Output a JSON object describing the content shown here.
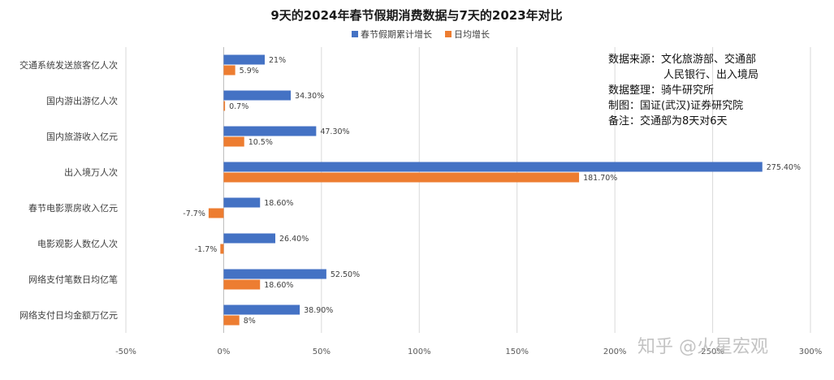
{
  "chart_data": {
    "type": "bar",
    "orientation": "horizontal",
    "title": "9天的2024年春节假期消费数据与7天的2023年对比",
    "categories": [
      "交通系统发送旅客亿人次",
      "国内游出游亿人次",
      "国内旅游收入亿元",
      "出入境万人次",
      "春节电影票房收入亿元",
      "电影观影人数亿人次",
      "网络支付笔数日均亿笔",
      "网络支付日均金额万亿元"
    ],
    "series": [
      {
        "name": "春节假期累计增长",
        "color": "#4472C4",
        "values": [
          21,
          34.3,
          47.3,
          275.4,
          18.6,
          26.4,
          52.5,
          38.9
        ],
        "labels": [
          "21%",
          "34.30%",
          "47.30%",
          "275.40%",
          "18.60%",
          "26.40%",
          "52.50%",
          "38.90%"
        ]
      },
      {
        "name": "日均增长",
        "color": "#ED7D31",
        "values": [
          5.9,
          0.7,
          10.5,
          181.7,
          -7.7,
          -1.7,
          18.6,
          8
        ],
        "labels": [
          "5.9%",
          "0.7%",
          "10.5%",
          "181.70%",
          "-7.7%",
          "-1.7%",
          "18.60%",
          "8%"
        ]
      }
    ],
    "xlim": [
      -50,
      300
    ],
    "xticks": [
      -50,
      0,
      50,
      100,
      150,
      200,
      250,
      300
    ],
    "xtick_labels": [
      "-50%",
      "0%",
      "50%",
      "100%",
      "150%",
      "200%",
      "250%",
      "300%"
    ],
    "grid": "vertical",
    "legend": "top-center"
  },
  "notes": {
    "lines": [
      "数据来源：文化旅游部、交通部",
      "人民银行、出入境局",
      "数据整理：骑牛研究所",
      "制图：国证(武汉)证券研究院",
      "备注：交通部为8天对6天"
    ]
  },
  "watermark": "知乎 @火星宏观"
}
